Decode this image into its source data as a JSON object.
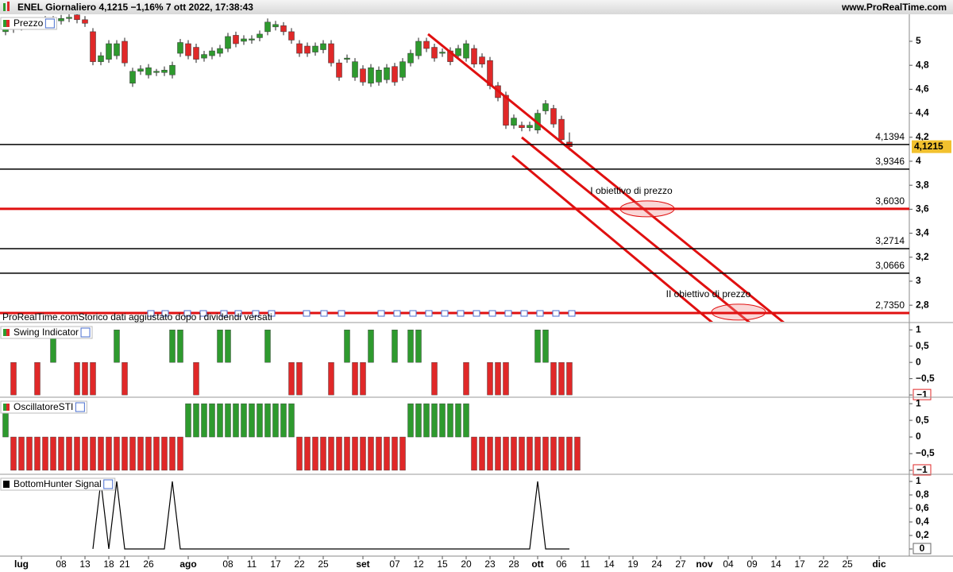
{
  "header": {
    "title": "ENEL Giornaliero 4,1215 −1,16% 7 ott 2022, 17:38:43",
    "site": "www.ProRealTime.com"
  },
  "chart_data": [
    {
      "type": "candlestick",
      "title": "Prezzo",
      "note": "ProRealTime.comStorico dati aggiustato dopo i dividendi versati",
      "up_color": "#2e9a2e",
      "down_color": "#e02828",
      "xlim": [
        -0.7,
        113.8
      ],
      "ylim": [
        2.662,
        5.225
      ],
      "yticks": [
        5,
        {
          "value": 4.8,
          "label": "4,8"
        },
        {
          "value": 4.6,
          "label": "4,6"
        },
        {
          "value": 4.4,
          "label": "4,4"
        },
        {
          "value": 4.2,
          "label": "4,2"
        },
        4,
        {
          "value": 3.8,
          "label": "3,8"
        },
        {
          "value": 3.6,
          "label": "3,6"
        },
        {
          "value": 3.4,
          "label": "3,4"
        },
        {
          "value": 3.2,
          "label": "3,2"
        },
        3,
        {
          "value": 2.8,
          "label": "2,8"
        }
      ],
      "open": [
        5.08,
        5.1,
        5.12,
        5.15,
        5.14,
        5.16,
        5.18,
        5.17,
        5.19,
        5.22,
        5.18,
        5.08,
        4.83,
        4.85,
        4.88,
        5.0,
        4.65,
        4.75,
        4.72,
        4.74,
        4.74,
        4.72,
        4.9,
        4.98,
        4.95,
        4.86,
        4.88,
        4.9,
        4.94,
        5.05,
        5.0,
        5.01,
        5.03,
        5.08,
        5.12,
        5.13,
        5.08,
        4.98,
        4.96,
        4.91,
        4.93,
        4.98,
        4.82,
        4.85,
        4.7,
        4.77,
        4.65,
        4.66,
        4.68,
        4.79,
        4.7,
        4.82,
        4.88,
        5.0,
        4.95,
        4.9,
        4.92,
        4.88,
        4.86,
        4.94,
        4.87,
        4.84,
        4.63,
        4.55,
        4.3,
        4.3,
        4.28,
        4.26,
        4.42,
        4.44,
        4.35,
        4.16
      ],
      "high": [
        5.13,
        5.15,
        5.18,
        5.18,
        5.19,
        5.21,
        5.21,
        5.22,
        5.23,
        5.25,
        5.21,
        5.11,
        4.91,
        5.01,
        5.01,
        5.03,
        4.78,
        4.8,
        4.81,
        4.77,
        4.79,
        4.83,
        5.02,
        5.01,
        4.98,
        4.92,
        4.95,
        4.97,
        5.07,
        5.08,
        5.05,
        5.05,
        5.09,
        5.19,
        5.17,
        5.16,
        5.11,
        5.01,
        4.99,
        4.99,
        5.01,
        5.01,
        4.85,
        4.89,
        4.86,
        4.8,
        4.81,
        4.79,
        4.81,
        4.82,
        4.86,
        4.93,
        5.03,
        5.03,
        4.98,
        4.94,
        4.95,
        4.97,
        5.01,
        4.97,
        4.9,
        4.87,
        4.66,
        4.58,
        4.39,
        4.33,
        4.33,
        4.43,
        4.51,
        4.47,
        4.38,
        4.24
      ],
      "low": [
        5.05,
        5.07,
        5.09,
        5.11,
        5.11,
        5.13,
        5.14,
        5.14,
        5.16,
        5.15,
        5.12,
        4.8,
        4.8,
        4.82,
        4.85,
        4.79,
        4.62,
        4.72,
        4.69,
        4.71,
        4.71,
        4.69,
        4.87,
        4.85,
        4.82,
        4.83,
        4.85,
        4.87,
        4.91,
        4.95,
        4.97,
        4.98,
        5.0,
        5.05,
        5.09,
        5.05,
        4.98,
        4.87,
        4.87,
        4.88,
        4.9,
        4.79,
        4.67,
        4.82,
        4.67,
        4.63,
        4.62,
        4.63,
        4.65,
        4.63,
        4.67,
        4.79,
        4.85,
        4.91,
        4.83,
        4.87,
        4.8,
        4.85,
        4.83,
        4.78,
        4.78,
        4.6,
        4.5,
        4.27,
        4.27,
        4.25,
        4.25,
        4.23,
        4.39,
        4.28,
        4.15,
        4.09
      ],
      "close": [
        5.1,
        5.12,
        5.15,
        5.14,
        5.16,
        5.18,
        5.17,
        5.19,
        5.2,
        5.18,
        5.15,
        4.83,
        4.88,
        4.98,
        4.98,
        4.82,
        4.75,
        4.77,
        4.78,
        4.75,
        4.76,
        4.8,
        4.99,
        4.88,
        4.85,
        4.89,
        4.92,
        4.94,
        5.04,
        4.98,
        5.02,
        5.02,
        5.06,
        5.16,
        5.14,
        5.08,
        5.01,
        4.9,
        4.9,
        4.96,
        4.98,
        4.82,
        4.7,
        4.86,
        4.83,
        4.66,
        4.78,
        4.76,
        4.78,
        4.66,
        4.83,
        4.9,
        5.0,
        4.94,
        4.86,
        4.91,
        4.83,
        4.94,
        4.98,
        4.81,
        4.81,
        4.63,
        4.53,
        4.3,
        4.36,
        4.28,
        4.3,
        4.4,
        4.48,
        4.31,
        4.18,
        4.1215
      ],
      "levels": [
        {
          "value": 4.1394,
          "label": "4,1394",
          "color": "#000000"
        },
        {
          "value": 3.9346,
          "label": "3,9346",
          "color": "#000000"
        },
        {
          "value": 3.603,
          "label": "3,6030",
          "color": "#e01010"
        },
        {
          "value": 3.2714,
          "label": "3,2714",
          "color": "#000000"
        },
        {
          "value": 3.0666,
          "label": "3,0666",
          "color": "#000000"
        },
        {
          "value": 2.735,
          "label": "2,7350",
          "color": "#e01010"
        }
      ],
      "last_price": {
        "value": 4.1215,
        "label": "4,1215",
        "color": "#f2c12e"
      },
      "trendlines": [
        {
          "x": [
            53.2,
            98.1
          ],
          "y": [
            5.06,
            2.649
          ]
        },
        {
          "x": [
            65,
            93.8
          ],
          "y": [
            4.199,
            2.649
          ]
        },
        {
          "x": [
            63.8,
            89.1
          ],
          "y": [
            4.046,
            2.649
          ]
        }
      ],
      "trendline_color": "#e01010",
      "targets": [
        {
          "x": 80.8,
          "y": 3.603,
          "label": "I obiettivo di prezzo"
        },
        {
          "x": 92.3,
          "y": 2.742,
          "label": "II obiettivo di prezzo"
        }
      ]
    },
    {
      "type": "bar",
      "title": "Swing Indicator",
      "up_color": "#2e9a2e",
      "down_color": "#e02828",
      "bottom_tick_box": "#e02828",
      "xlim": [
        -0.7,
        113.8
      ],
      "ylim": [
        -1.07,
        1.2
      ],
      "yticks": [
        1,
        {
          "value": 0.5,
          "label": "0,5"
        },
        0,
        {
          "value": -0.5,
          "label": "−0,5"
        },
        {
          "value": -1,
          "label": "−1"
        }
      ],
      "values": [
        0,
        -1,
        0,
        0,
        -1,
        0,
        1,
        0,
        0,
        -1,
        -1,
        -1,
        0,
        0,
        1,
        -1,
        0,
        0,
        0,
        0,
        0,
        1,
        1,
        0,
        -1,
        0,
        0,
        1,
        1,
        0,
        0,
        0,
        0,
        1,
        0,
        0,
        -1,
        -1,
        0,
        0,
        0,
        -1,
        0,
        1,
        -1,
        -1,
        1,
        0,
        0,
        1,
        0,
        1,
        1,
        0,
        -1,
        0,
        0,
        0,
        -1,
        0,
        0,
        -1,
        -1,
        -1,
        0,
        0,
        0,
        1,
        1,
        -1,
        -1,
        -1
      ]
    },
    {
      "type": "bar",
      "title": "OscillatoreSTI",
      "up_color": "#2e9a2e",
      "down_color": "#e02828",
      "bottom_tick_box": "#e02828",
      "xlim": [
        -0.7,
        113.8
      ],
      "ylim": [
        -1.12,
        1.17
      ],
      "yticks": [
        1,
        {
          "value": 0.5,
          "label": "0,5"
        },
        0,
        {
          "value": -0.5,
          "label": "−0,5"
        },
        {
          "value": -1,
          "label": "−1"
        }
      ],
      "values": [
        1,
        -1,
        -1,
        -1,
        -1,
        -1,
        -1,
        -1,
        -1,
        -1,
        -1,
        -1,
        -1,
        -1,
        -1,
        -1,
        -1,
        -1,
        -1,
        -1,
        -1,
        -1,
        -1,
        1,
        1,
        1,
        1,
        1,
        1,
        1,
        1,
        1,
        1,
        1,
        1,
        1,
        1,
        -1,
        -1,
        -1,
        -1,
        -1,
        -1,
        -1,
        -1,
        -1,
        -1,
        -1,
        -1,
        -1,
        -1,
        1,
        1,
        1,
        1,
        1,
        1,
        1,
        1,
        -1,
        -1,
        -1,
        -1,
        -1,
        -1,
        -1,
        -1,
        -1,
        -1,
        -1,
        -1,
        -1,
        -1
      ]
    },
    {
      "type": "line",
      "title": "BottomHunter Signal",
      "color": "#000000",
      "bottom_tick_box": "#666666",
      "xlim": [
        -0.7,
        113.8
      ],
      "ylim": [
        -0.106,
        1.094
      ],
      "yticks": [
        1,
        {
          "value": 0.8,
          "label": "0,8"
        },
        {
          "value": 0.6,
          "label": "0,6"
        },
        {
          "value": 0.4,
          "label": "0,4"
        },
        {
          "value": 0.2,
          "label": "0,2"
        },
        0
      ],
      "values": [
        null,
        null,
        null,
        null,
        null,
        null,
        null,
        null,
        null,
        null,
        null,
        0,
        1,
        0,
        1,
        0,
        0,
        0,
        0,
        0,
        0,
        1,
        0,
        0,
        0,
        0,
        0,
        0,
        0,
        0,
        0,
        0,
        0,
        0,
        0,
        0,
        0,
        0,
        0,
        0,
        0,
        0,
        0,
        0,
        0,
        0,
        0,
        0,
        0,
        0,
        0,
        0,
        0,
        0,
        0,
        0,
        0,
        0,
        0,
        0,
        0,
        0,
        0,
        0,
        0,
        0,
        0,
        1,
        0,
        0,
        0,
        0
      ],
      "xticks": [
        {
          "value": 2,
          "label": "lug"
        },
        {
          "value": 7,
          "label": "08"
        },
        {
          "value": 10,
          "label": "13"
        },
        {
          "value": 13,
          "label": "18"
        },
        {
          "value": 15,
          "label": "21"
        },
        {
          "value": 18,
          "label": "26"
        },
        {
          "value": 23,
          "label": "ago"
        },
        {
          "value": 28,
          "label": "08"
        },
        {
          "value": 31,
          "label": "11"
        },
        {
          "value": 34,
          "label": "17"
        },
        {
          "value": 37,
          "label": "22"
        },
        {
          "value": 40,
          "label": "25"
        },
        {
          "value": 45,
          "label": "set"
        },
        {
          "value": 49,
          "label": "07"
        },
        {
          "value": 52,
          "label": "12"
        },
        {
          "value": 55,
          "label": "15"
        },
        {
          "value": 58,
          "label": "20"
        },
        {
          "value": 61,
          "label": "23"
        },
        {
          "value": 64,
          "label": "28"
        },
        {
          "value": 67,
          "label": "ott"
        },
        {
          "value": 70,
          "label": "06"
        },
        {
          "value": 73,
          "label": "11"
        },
        {
          "value": 76,
          "label": "14"
        },
        {
          "value": 79,
          "label": "19"
        },
        {
          "value": 82,
          "label": "24"
        },
        {
          "value": 85,
          "label": "27"
        },
        {
          "value": 88,
          "label": "nov"
        },
        {
          "value": 91,
          "label": "04"
        },
        {
          "value": 94,
          "label": "09"
        },
        {
          "value": 97,
          "label": "14"
        },
        {
          "value": 100,
          "label": "17"
        },
        {
          "value": 103,
          "label": "22"
        },
        {
          "value": 106,
          "label": "25"
        },
        {
          "value": 110,
          "label": "dic"
        }
      ]
    }
  ]
}
